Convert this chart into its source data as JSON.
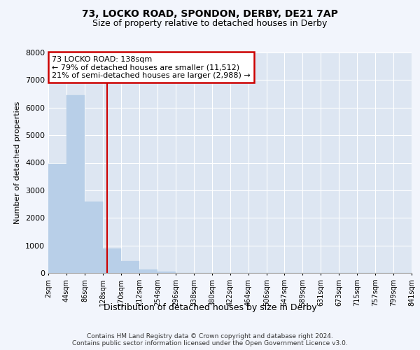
{
  "title1": "73, LOCKO ROAD, SPONDON, DERBY, DE21 7AP",
  "title2": "Size of property relative to detached houses in Derby",
  "xlabel": "Distribution of detached houses by size in Derby",
  "ylabel": "Number of detached properties",
  "annotation_line1": "73 LOCKO ROAD: 138sqm",
  "annotation_line2": "← 79% of detached houses are smaller (11,512)",
  "annotation_line3": "21% of semi-detached houses are larger (2,988) →",
  "property_size": 138,
  "bar_color": "#b8cfe8",
  "vline_color": "#cc0000",
  "vline_x": 138,
  "background_color": "#f2f5fc",
  "plot_bg_color": "#dde6f2",
  "grid_color": "#ffffff",
  "footer": "Contains HM Land Registry data © Crown copyright and database right 2024.\nContains public sector information licensed under the Open Government Licence v3.0.",
  "bin_edges": [
    2,
    44,
    86,
    128,
    170,
    212,
    254,
    296,
    338,
    380,
    422,
    464,
    506,
    547,
    589,
    631,
    673,
    715,
    757,
    799,
    841
  ],
  "bin_labels": [
    "2sqm",
    "44sqm",
    "86sqm",
    "128sqm",
    "170sqm",
    "212sqm",
    "254sqm",
    "296sqm",
    "338sqm",
    "380sqm",
    "422sqm",
    "464sqm",
    "506sqm",
    "547sqm",
    "589sqm",
    "631sqm",
    "673sqm",
    "715sqm",
    "757sqm",
    "799sqm",
    "841sqm"
  ],
  "bar_heights": [
    3950,
    6450,
    2600,
    900,
    420,
    130,
    45,
    10,
    0,
    0,
    0,
    0,
    0,
    0,
    0,
    0,
    0,
    0,
    0,
    0
  ],
  "ylim": [
    0,
    8000
  ],
  "yticks": [
    0,
    1000,
    2000,
    3000,
    4000,
    5000,
    6000,
    7000,
    8000
  ]
}
